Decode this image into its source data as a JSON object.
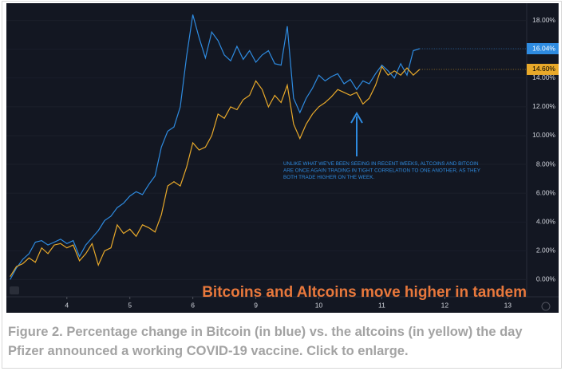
{
  "chart_data": {
    "type": "line",
    "title": "Bitcoins and Altcoins move higher in tandem",
    "annotation": [
      "UNLIKE WHAT WE'VE BEEN SEEING IN RECENT WEEKS, ALTCOINS AND BITCOIN",
      "ARE ONCE AGAIN TRADING IN TIGHT CORRELATION TO ONE ANOTHER, AS THEY",
      "BOTH TRADE HIGHER ON THE WEEK."
    ],
    "caption": "Figure 2. Percentage change in Bitcoin (in blue) vs. the altcoins (in yellow) the day Pfizer announced a working COVID-19 vaccine. Click to enlarge.",
    "x": [
      -0.9,
      -0.8,
      -0.7,
      -0.6,
      -0.5,
      -0.4,
      -0.3,
      -0.2,
      -0.1,
      0,
      0.1,
      0.2,
      0.3,
      0.4,
      0.5,
      0.6,
      0.7,
      0.8,
      0.9,
      1,
      1.1,
      1.2,
      1.3,
      1.4,
      1.5,
      1.6,
      1.7,
      1.8,
      1.9,
      2,
      2.1,
      2.2,
      2.3,
      2.4,
      2.5,
      2.6,
      2.7,
      2.8,
      2.9,
      3,
      3.1,
      3.2,
      3.3,
      3.4,
      3.5,
      3.6,
      3.7,
      3.8,
      3.9,
      4,
      4.1,
      4.2,
      4.3,
      4.4,
      4.5,
      4.6,
      4.7,
      4.8,
      4.9,
      5,
      5.1,
      5.2,
      5.3,
      5.4,
      5.5,
      5.6
    ],
    "series": [
      {
        "name": "Bitcoin",
        "color": "#2e8be0",
        "end_label": "16.04%",
        "values": [
          0,
          0.8,
          1.4,
          1.8,
          2.6,
          2.7,
          2.4,
          2.6,
          2.8,
          2.5,
          2.7,
          1.6,
          2.4,
          2.9,
          3.4,
          4.1,
          4.4,
          5.0,
          5.3,
          5.8,
          6.1,
          5.9,
          6.6,
          7.2,
          9.2,
          10.3,
          10.6,
          12.0,
          15.5,
          18.4,
          16.8,
          15.4,
          17.2,
          16.6,
          15.6,
          15.2,
          16.2,
          15.3,
          15.9,
          15.1,
          15.6,
          15.9,
          15.0,
          14.9,
          17.6,
          12.6,
          11.6,
          12.6,
          13.3,
          14.2,
          13.8,
          14.1,
          14.3,
          13.6,
          13.9,
          13.2,
          13.8,
          13.6,
          14.3,
          14.9,
          14.5,
          14.0,
          15.0,
          14.2,
          15.9,
          16.04
        ]
      },
      {
        "name": "Altcoins",
        "color": "#e8a92a",
        "end_label": "14.60%",
        "values": [
          0.2,
          0.9,
          1.1,
          1.5,
          1.2,
          2.2,
          1.8,
          2.4,
          2.5,
          2.2,
          2.4,
          1.3,
          1.8,
          2.5,
          1.0,
          2.0,
          2.2,
          3.8,
          3.2,
          3.5,
          3.0,
          3.8,
          3.6,
          3.3,
          4.5,
          6.5,
          6.8,
          6.5,
          7.8,
          9.5,
          9.0,
          9.2,
          10.0,
          11.5,
          11.2,
          12.0,
          11.8,
          12.5,
          12.8,
          13.8,
          13.2,
          12.0,
          12.8,
          12.3,
          13.5,
          10.8,
          9.8,
          10.8,
          11.5,
          12.0,
          12.3,
          12.7,
          13.2,
          13.0,
          12.8,
          13.0,
          12.2,
          12.6,
          13.5,
          14.8,
          14.2,
          14.5,
          14.2,
          14.7,
          14.2,
          14.6
        ]
      }
    ],
    "xlim": [
      -0.96,
      7.3
    ],
    "xticks": [
      {
        "value": 0,
        "label": "4"
      },
      {
        "value": 1,
        "label": "5"
      },
      {
        "value": 2,
        "label": "6"
      },
      {
        "value": 3,
        "label": "9"
      },
      {
        "value": 4,
        "label": "10"
      },
      {
        "value": 5,
        "label": "11"
      },
      {
        "value": 6,
        "label": "12"
      },
      {
        "value": 7,
        "label": "13"
      }
    ],
    "ylim": [
      -1.2,
      19.2
    ],
    "yticks": [
      {
        "value": 0,
        "label": "0.00%"
      },
      {
        "value": 2,
        "label": "2.00%"
      },
      {
        "value": 4,
        "label": "4.00%"
      },
      {
        "value": 6,
        "label": "6.00%"
      },
      {
        "value": 8,
        "label": "8.00%"
      },
      {
        "value": 10,
        "label": "10.00%"
      },
      {
        "value": 12,
        "label": "12.00%"
      },
      {
        "value": 14,
        "label": "14.00%"
      },
      {
        "value": 16,
        "label": "16.00%"
      },
      {
        "value": 18,
        "label": "18.00%"
      }
    ]
  }
}
